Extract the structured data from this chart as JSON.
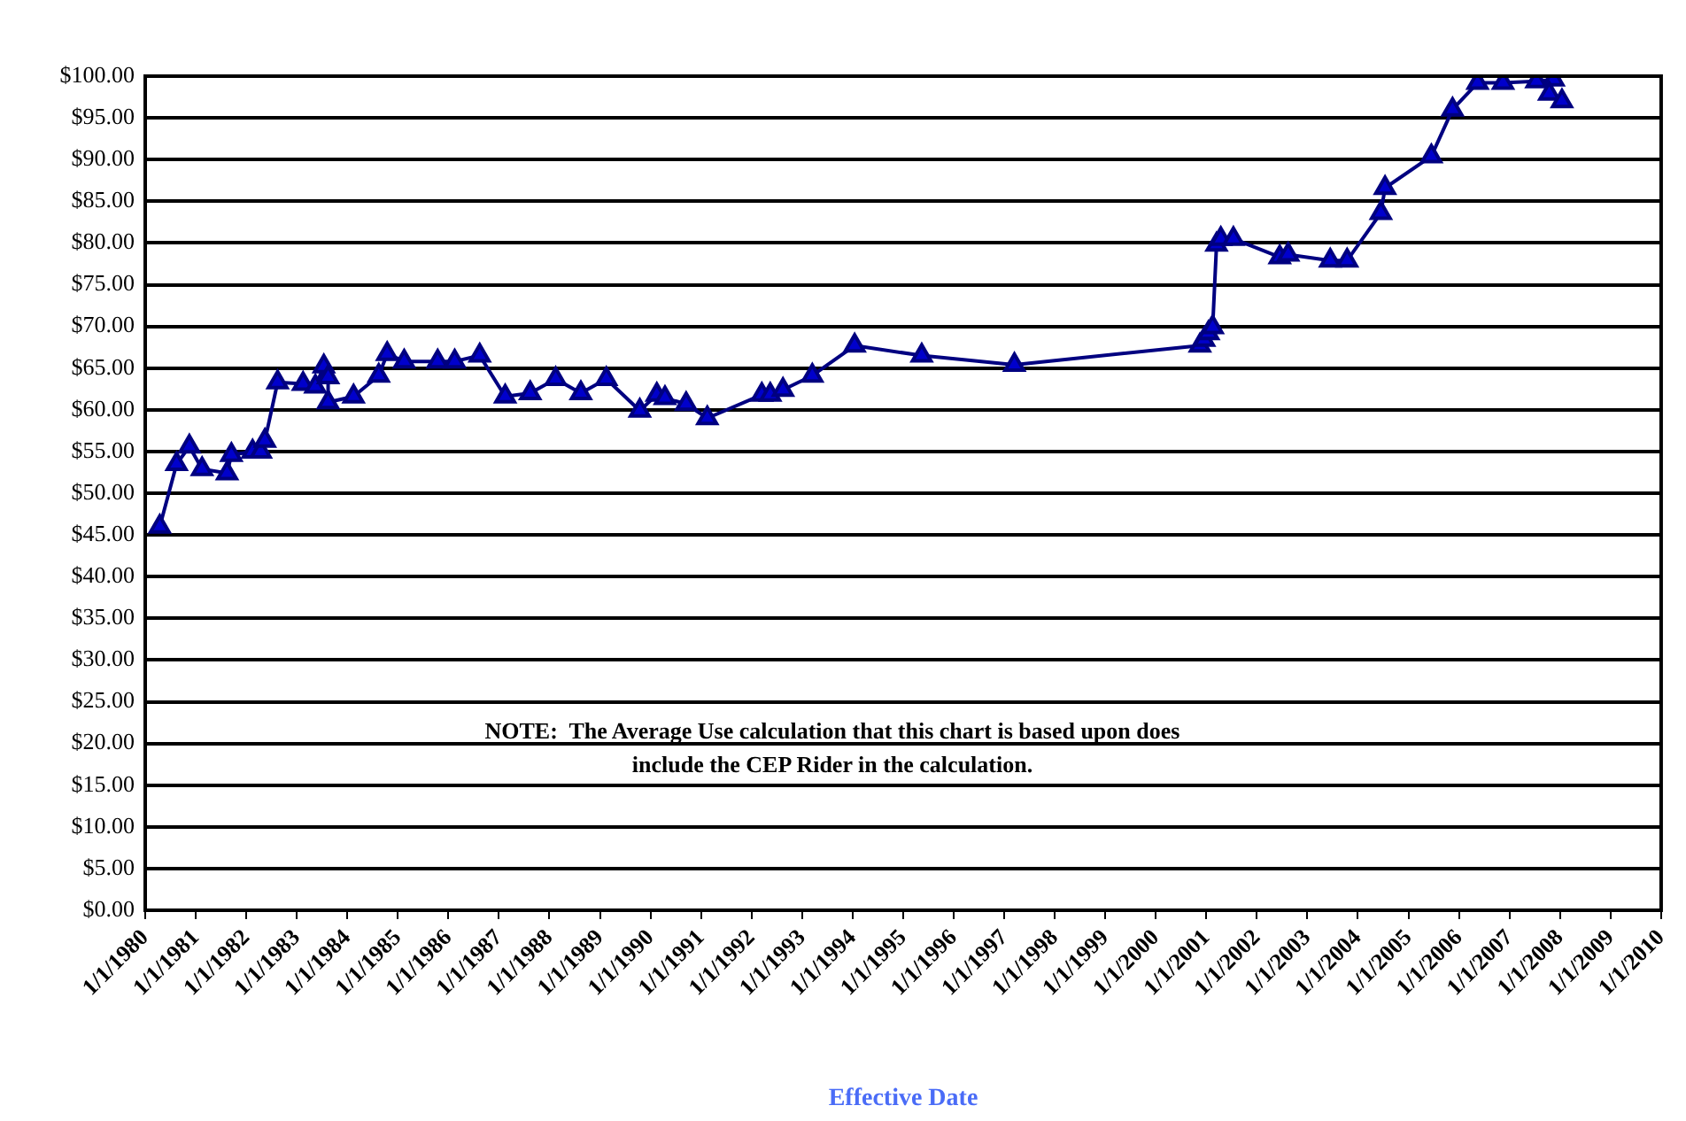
{
  "chart_data": {
    "type": "line",
    "xlabel": "Effective Date",
    "x": [
      "1980-04",
      "1980-08",
      "1980-11",
      "1981-02",
      "1981-08",
      "1981-09",
      "1982-02",
      "1982-04",
      "1982-05",
      "1982-08",
      "1983-02",
      "1983-05",
      "1983-07",
      "1983-08",
      "1983-08",
      "1984-02",
      "1984-08",
      "1984-10",
      "1985-02",
      "1985-10",
      "1986-02",
      "1986-08",
      "1987-02",
      "1987-08",
      "1988-02",
      "1988-08",
      "1989-02",
      "1989-10",
      "1990-02",
      "1990-04",
      "1990-09",
      "1991-02",
      "1992-03",
      "1992-05",
      "1992-08",
      "1993-03",
      "1994-01",
      "1995-05",
      "1997-03",
      "2000-11",
      "2000-12",
      "2001-01",
      "2001-02",
      "2001-03",
      "2001-04",
      "2001-07",
      "2002-06",
      "2002-08",
      "2003-06",
      "2003-10",
      "2004-06",
      "2004-07",
      "2005-06",
      "2005-11",
      "2006-05",
      "2006-11",
      "2007-07",
      "2007-11",
      "2007-10",
      "2008-01"
    ],
    "series": [
      {
        "color": "#000080",
        "values": [
          46,
          53.5,
          55.6,
          52.9,
          52.4,
          54.6,
          55,
          55,
          56.3,
          63.3,
          63.1,
          62.8,
          65.2,
          63.9,
          60.9,
          61.6,
          64.1,
          66.7,
          65.8,
          65.8,
          65.8,
          66.5,
          61.6,
          62,
          63.7,
          62,
          63.7,
          59.9,
          61.8,
          61.4,
          60.7,
          59,
          61.8,
          61.8,
          62.4,
          64.1,
          67.7,
          66.5,
          65.4,
          67.7,
          68.4,
          69.2,
          69.9,
          79.8,
          80.5,
          80.5,
          78.3,
          78.6,
          77.9,
          77.9,
          83.6,
          86.6,
          90.4,
          96,
          99.2,
          99.2,
          99.4,
          99.6,
          97.9,
          97
        ]
      }
    ],
    "marker": "triangle",
    "grid": "y",
    "legend": false,
    "ylim": [
      0,
      100
    ],
    "yticks": [
      {
        "value": 0,
        "label": "$0.00"
      },
      {
        "value": 5,
        "label": "$5.00"
      },
      {
        "value": 10,
        "label": "$10.00"
      },
      {
        "value": 15,
        "label": "$15.00"
      },
      {
        "value": 20,
        "label": "$20.00"
      },
      {
        "value": 25,
        "label": "$25.00"
      },
      {
        "value": 30,
        "label": "$30.00"
      },
      {
        "value": 35,
        "label": "$35.00"
      },
      {
        "value": 40,
        "label": "$40.00"
      },
      {
        "value": 45,
        "label": "$45.00"
      },
      {
        "value": 50,
        "label": "$50.00"
      },
      {
        "value": 55,
        "label": "$55.00"
      },
      {
        "value": 60,
        "label": "$60.00"
      },
      {
        "value": 65,
        "label": "$65.00"
      },
      {
        "value": 70,
        "label": "$70.00"
      },
      {
        "value": 75,
        "label": "$75.00"
      },
      {
        "value": 80,
        "label": "$80.00"
      },
      {
        "value": 85,
        "label": "$85.00"
      },
      {
        "value": 90,
        "label": "$90.00"
      },
      {
        "value": 95,
        "label": "$95.00"
      },
      {
        "value": 100,
        "label": "$100.00"
      }
    ],
    "xlim": [
      "1980-01-01",
      "2010-01-01"
    ],
    "xticks": [
      {
        "value": "1980-01-01",
        "label": "1/1/1980"
      },
      {
        "value": "1981-01-01",
        "label": "1/1/1981"
      },
      {
        "value": "1982-01-01",
        "label": "1/1/1982"
      },
      {
        "value": "1983-01-01",
        "label": "1/1/1983"
      },
      {
        "value": "1984-01-01",
        "label": "1/1/1984"
      },
      {
        "value": "1985-01-01",
        "label": "1/1/1985"
      },
      {
        "value": "1986-01-01",
        "label": "1/1/1986"
      },
      {
        "value": "1987-01-01",
        "label": "1/1/1987"
      },
      {
        "value": "1988-01-01",
        "label": "1/1/1988"
      },
      {
        "value": "1989-01-01",
        "label": "1/1/1989"
      },
      {
        "value": "1990-01-01",
        "label": "1/1/1990"
      },
      {
        "value": "1991-01-01",
        "label": "1/1/1991"
      },
      {
        "value": "1992-01-01",
        "label": "1/1/1992"
      },
      {
        "value": "1993-01-01",
        "label": "1/1/1993"
      },
      {
        "value": "1994-01-01",
        "label": "1/1/1994"
      },
      {
        "value": "1995-01-01",
        "label": "1/1/1995"
      },
      {
        "value": "1996-01-01",
        "label": "1/1/1996"
      },
      {
        "value": "1997-01-01",
        "label": "1/1/1997"
      },
      {
        "value": "1998-01-01",
        "label": "1/1/1998"
      },
      {
        "value": "1999-01-01",
        "label": "1/1/1999"
      },
      {
        "value": "2000-01-01",
        "label": "1/1/2000"
      },
      {
        "value": "2001-01-01",
        "label": "1/1/2001"
      },
      {
        "value": "2002-01-01",
        "label": "1/1/2002"
      },
      {
        "value": "2003-01-01",
        "label": "1/1/2003"
      },
      {
        "value": "2004-01-01",
        "label": "1/1/2004"
      },
      {
        "value": "2005-01-01",
        "label": "1/1/2005"
      },
      {
        "value": "2006-01-01",
        "label": "1/1/2006"
      },
      {
        "value": "2007-01-01",
        "label": "1/1/2007"
      },
      {
        "value": "2008-01-01",
        "label": "1/1/2008"
      },
      {
        "value": "2009-01-01",
        "label": "1/1/2009"
      },
      {
        "value": "2010-01-01",
        "label": "1/1/2010"
      }
    ],
    "annotations": [
      "NOTE:  The Average Use calculation that this chart is based upon does\ninclude the CEP Rider in the calculation."
    ]
  }
}
